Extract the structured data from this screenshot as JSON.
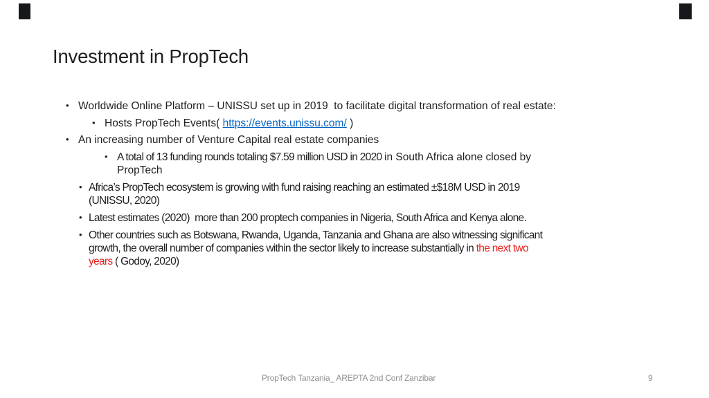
{
  "colors": {
    "text": "#1f1f1f",
    "link": "#0563c1",
    "red": "#e8211d",
    "footer": "#8c8c8c",
    "mark": "#17181c"
  },
  "slide": {
    "title": "Investment in PropTech",
    "bullets": [
      {
        "level": 1,
        "font": "normal",
        "segments": [
          {
            "t": "Worldwide Online Platform – UNISSU set up in 2019  to facilitate digital transformation of real estate:",
            "s": "plain"
          }
        ]
      },
      {
        "level": 2,
        "font": "normal",
        "segments": [
          {
            "t": "Hosts PropTech Events( ",
            "s": "plain"
          },
          {
            "t": "https://events.unissu.com/",
            "s": "link"
          },
          {
            "t": " )",
            "s": "plain"
          }
        ]
      },
      {
        "level": 1,
        "font": "normal",
        "segments": [
          {
            "t": "An increasing number of Venture Capital real estate companies",
            "s": "plain"
          }
        ]
      },
      {
        "level": 3,
        "font": "normal",
        "segments": [
          {
            "t": "A total of 13 funding rounds totaling $7.59 million USD in 2020 ",
            "s": "cond"
          },
          {
            "t": "in South Africa alone closed by",
            "s": "plain"
          },
          {
            "s": "br"
          },
          {
            "t": "PropTech",
            "s": "plain"
          }
        ]
      },
      {
        "level": 4,
        "font": "cond",
        "segments": [
          {
            "t": "Africa’s PropTech ecosystem is growing with fund raising reaching an estimated ±$18M USD in 2019",
            "s": "plain"
          },
          {
            "s": "br"
          },
          {
            "t": "(UNISSU, 2020)",
            "s": "plain"
          }
        ]
      },
      {
        "level": 4,
        "font": "cond",
        "segments": [
          {
            "t": "Latest estimates (2020)  more than 200 proptech companies in Nigeria, South Africa and Kenya alone.",
            "s": "plain"
          }
        ]
      },
      {
        "level": 4,
        "font": "cond",
        "segments": [
          {
            "t": "Other countries such as Botswana, Rwanda, Uganda, Tanzania and Ghana are also witnessing significant",
            "s": "plain"
          },
          {
            "s": "br"
          },
          {
            "t": "growth, the overall number of companies within the sector likely to increase substantially in ",
            "s": "plain"
          },
          {
            "t": "the next two",
            "s": "red"
          },
          {
            "s": "br"
          },
          {
            "t": "years",
            "s": "red"
          },
          {
            "t": " ( Godoy, 2020)",
            "s": "plain"
          }
        ]
      }
    ],
    "footer": {
      "text": "PropTech Tanzania_ AREPTA 2nd Conf Zanzibar",
      "page_number": "9"
    }
  }
}
